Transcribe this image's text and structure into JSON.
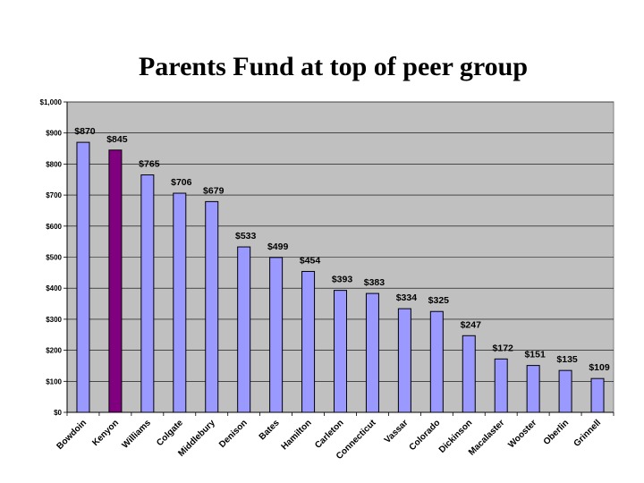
{
  "chart_data": {
    "type": "bar",
    "title": "Parents Fund at top of peer group",
    "xlabel": "",
    "ylabel": "",
    "ylim": [
      0,
      1000
    ],
    "y_ticks": [
      0,
      100,
      200,
      300,
      400,
      500,
      600,
      700,
      800,
      900,
      1000
    ],
    "y_tick_labels": [
      "$0",
      "$100",
      "$200",
      "$300",
      "$400",
      "$500",
      "$600",
      "$700",
      "$800",
      "$900",
      "$1,000"
    ],
    "grid": true,
    "categories": [
      "Bowdoin",
      "Kenyon",
      "Williams",
      "Colgate",
      "Middlebury",
      "Denison",
      "Bates",
      "Hamilton",
      "Carleton",
      "Connecticut",
      "Vassar",
      "Colorado",
      "Dickinson",
      "Macalaster",
      "Wooster",
      "Oberlin",
      "Grinnell"
    ],
    "values": [
      870,
      845,
      765,
      706,
      679,
      533,
      499,
      454,
      393,
      383,
      334,
      325,
      247,
      172,
      151,
      135,
      109
    ],
    "value_labels": [
      "$870",
      "$845",
      "$765",
      "$706",
      "$679",
      "$533",
      "$499",
      "$454",
      "$393",
      "$383",
      "$334",
      "$325",
      "$247",
      "$172",
      "$151",
      "$135",
      "$109"
    ],
    "highlight_category": "Kenyon",
    "colors": {
      "bar": "#9999ff",
      "highlight": "#800080",
      "plot_background": "#c0c0c0",
      "gridline": "#000000",
      "bar_outline": "#000000"
    }
  }
}
